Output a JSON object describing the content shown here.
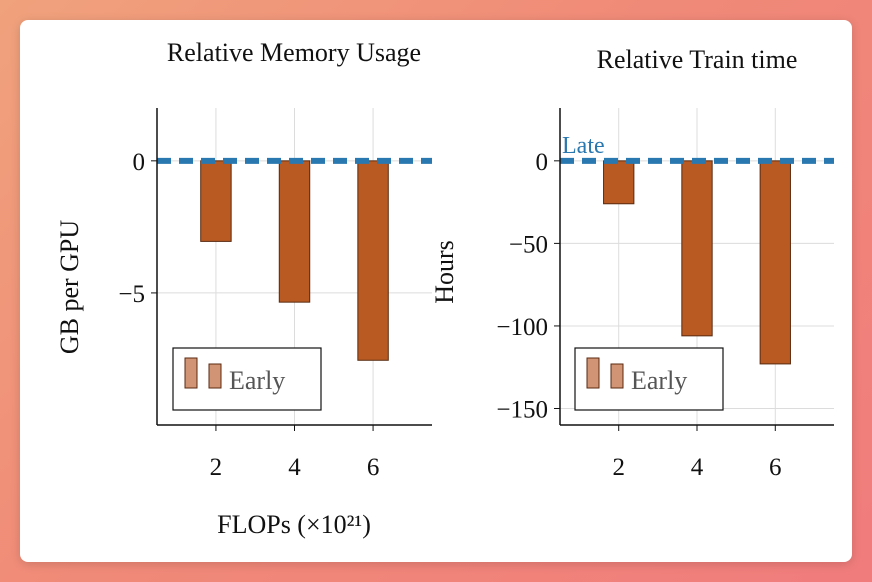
{
  "colors": {
    "bar_fill": "#b85a22",
    "bar_stroke": "#5a2a10",
    "late_line": "#2a78b0",
    "legend_swatch": "#d19474",
    "grid": "#dcdcdc"
  },
  "chart_data": [
    {
      "type": "bar",
      "title": "Relative Memory Usage",
      "ylabel": "GB per GPU",
      "xlabel": "FLOPs (×10²¹)",
      "xticks": [
        2,
        4,
        6
      ],
      "yticks": [
        0,
        -5
      ],
      "ytick_labels": [
        "0",
        "−5"
      ],
      "xlim": [
        0.5,
        7.5
      ],
      "ylim": [
        -10,
        2
      ],
      "series": [
        {
          "name": "Early",
          "x": [
            2,
            4,
            6
          ],
          "values": [
            -3.05,
            -5.35,
            -7.55
          ]
        }
      ],
      "reference_line": {
        "label": "",
        "value": 0,
        "style": "dashed"
      },
      "legend": {
        "entries": [
          "Early"
        ],
        "position": "bottom-left"
      },
      "grid": true
    },
    {
      "type": "bar",
      "title": "Relative Train time",
      "ylabel": "Hours",
      "xlabel": "",
      "xticks": [
        2,
        4,
        6
      ],
      "yticks": [
        0,
        -50,
        -100,
        -150
      ],
      "ytick_labels": [
        "0",
        "−50",
        "−100",
        "−150"
      ],
      "xlim": [
        0.5,
        7.5
      ],
      "ylim": [
        -160,
        32
      ],
      "series": [
        {
          "name": "Early",
          "x": [
            2,
            4,
            6
          ],
          "values": [
            -26,
            -106,
            -123
          ]
        }
      ],
      "reference_line": {
        "label": "Late",
        "value": 0,
        "style": "dashed"
      },
      "legend": {
        "entries": [
          "Early"
        ],
        "position": "bottom-left"
      },
      "grid": true
    }
  ]
}
